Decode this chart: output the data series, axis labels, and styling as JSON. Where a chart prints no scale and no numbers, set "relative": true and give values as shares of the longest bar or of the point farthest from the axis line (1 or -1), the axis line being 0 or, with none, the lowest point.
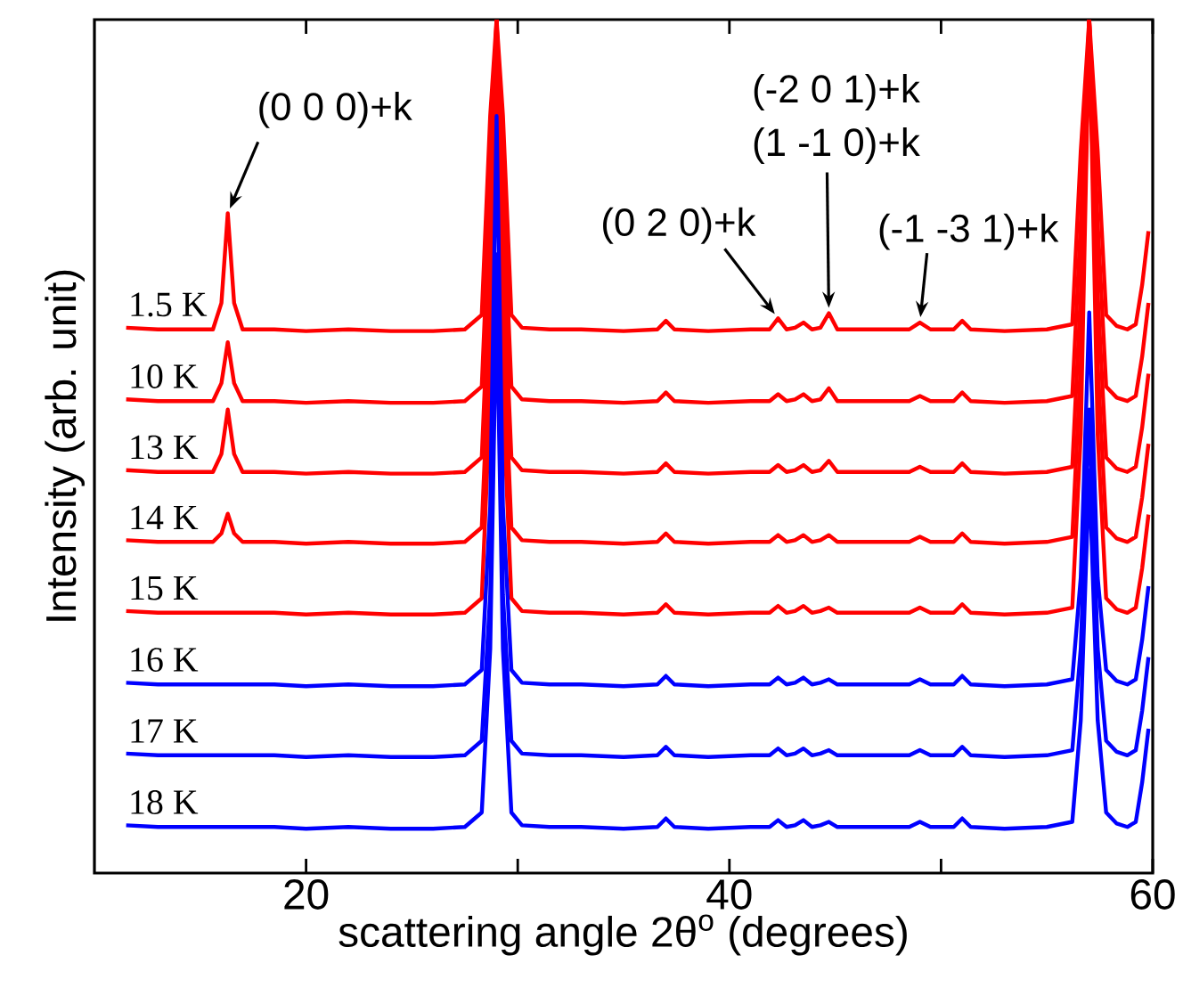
{
  "chart_data": {
    "type": "line",
    "xlabel": "scattering angle 2θ$^{o}$ (degrees)",
    "ylabel": "Intensity (arb. unit)",
    "relative": true,
    "tick_labels": "x",
    "xlim": [
      10,
      60
    ],
    "xticks": [
      20,
      {
        "value": 30,
        "label": null
      },
      40,
      {
        "value": 50,
        "label": null
      },
      60
    ],
    "x": [
      11.5,
      13,
      14.5,
      15.6,
      16.0,
      16.3,
      16.6,
      17.0,
      18.5,
      20,
      22,
      24,
      26,
      27.5,
      28.3,
      28.7,
      29.0,
      29.3,
      29.7,
      30.2,
      31.5,
      33,
      35,
      36.6,
      37.0,
      37.4,
      39,
      41,
      41.9,
      42.3,
      42.7,
      43.1,
      43.5,
      43.9,
      44.3,
      44.7,
      45.1,
      46.5,
      48.5,
      49.0,
      49.5,
      50.6,
      51.0,
      51.4,
      53,
      55,
      56.2,
      56.6,
      57.0,
      57.4,
      57.8,
      58.3,
      58.8,
      59.2,
      59.5,
      59.8
    ],
    "series": [
      {
        "name": "1.5 K",
        "color": "#ff0000",
        "values": [
          0.639,
          0.637,
          0.637,
          0.637,
          0.668,
          0.773,
          0.668,
          0.637,
          0.637,
          0.635,
          0.637,
          0.635,
          0.635,
          0.637,
          0.654,
          0.888,
          1,
          0.888,
          0.654,
          0.639,
          0.637,
          0.637,
          0.635,
          0.637,
          0.647,
          0.637,
          0.635,
          0.637,
          0.637,
          0.65,
          0.637,
          0.639,
          0.645,
          0.637,
          0.639,
          0.656,
          0.637,
          0.637,
          0.637,
          0.645,
          0.637,
          0.637,
          0.647,
          0.637,
          0.635,
          0.637,
          0.643,
          0.846,
          1,
          0.846,
          0.654,
          0.641,
          0.637,
          0.643,
          0.689,
          0.752
        ]
      },
      {
        "name": "10 K",
        "color": "#ff0000",
        "values": [
          0.555,
          0.553,
          0.553,
          0.553,
          0.574,
          0.622,
          0.574,
          0.553,
          0.553,
          0.551,
          0.553,
          0.551,
          0.551,
          0.553,
          0.57,
          0.804,
          1,
          0.804,
          0.57,
          0.555,
          0.553,
          0.553,
          0.551,
          0.553,
          0.563,
          0.553,
          0.551,
          0.553,
          0.553,
          0.561,
          0.553,
          0.555,
          0.561,
          0.553,
          0.555,
          0.568,
          0.553,
          0.553,
          0.553,
          0.559,
          0.553,
          0.553,
          0.563,
          0.553,
          0.551,
          0.553,
          0.559,
          0.762,
          1,
          0.762,
          0.57,
          0.557,
          0.553,
          0.559,
          0.605,
          0.668
        ]
      },
      {
        "name": "13 K",
        "color": "#ff0000",
        "values": [
          0.472,
          0.47,
          0.47,
          0.47,
          0.491,
          0.543,
          0.491,
          0.47,
          0.47,
          0.468,
          0.47,
          0.468,
          0.468,
          0.47,
          0.487,
          0.721,
          1,
          0.721,
          0.487,
          0.472,
          0.47,
          0.47,
          0.468,
          0.47,
          0.48,
          0.47,
          0.468,
          0.47,
          0.47,
          0.478,
          0.47,
          0.472,
          0.478,
          0.47,
          0.472,
          0.483,
          0.47,
          0.47,
          0.47,
          0.476,
          0.47,
          0.47,
          0.48,
          0.47,
          0.468,
          0.47,
          0.476,
          0.679,
          1,
          0.679,
          0.487,
          0.474,
          0.47,
          0.476,
          0.522,
          0.585
        ]
      },
      {
        "name": "14 K",
        "color": "#ff0000",
        "values": [
          0.39,
          0.388,
          0.388,
          0.388,
          0.398,
          0.421,
          0.398,
          0.388,
          0.388,
          0.386,
          0.388,
          0.386,
          0.386,
          0.388,
          0.405,
          0.639,
          1,
          0.639,
          0.405,
          0.39,
          0.388,
          0.388,
          0.386,
          0.388,
          0.398,
          0.388,
          0.386,
          0.388,
          0.388,
          0.396,
          0.388,
          0.39,
          0.396,
          0.388,
          0.39,
          0.396,
          0.388,
          0.388,
          0.388,
          0.394,
          0.388,
          0.388,
          0.398,
          0.388,
          0.386,
          0.388,
          0.394,
          0.597,
          1,
          0.597,
          0.405,
          0.392,
          0.388,
          0.394,
          0.44,
          0.503
        ]
      },
      {
        "name": "15 K",
        "color": "#ff0000",
        "values": [
          0.307,
          0.305,
          0.305,
          0.305,
          0.305,
          0.305,
          0.305,
          0.305,
          0.305,
          0.303,
          0.305,
          0.303,
          0.303,
          0.305,
          0.322,
          0.556,
          1,
          0.556,
          0.322,
          0.307,
          0.305,
          0.305,
          0.303,
          0.305,
          0.315,
          0.305,
          0.303,
          0.305,
          0.305,
          0.313,
          0.305,
          0.307,
          0.313,
          0.305,
          0.307,
          0.311,
          0.305,
          0.305,
          0.305,
          0.311,
          0.305,
          0.305,
          0.315,
          0.305,
          0.303,
          0.305,
          0.311,
          0.514,
          1,
          0.514,
          0.322,
          0.309,
          0.305,
          0.311,
          0.357,
          0.42
        ]
      },
      {
        "name": "16 K",
        "color": "#0000ff",
        "values": [
          0.223,
          0.221,
          0.221,
          0.221,
          0.221,
          0.221,
          0.221,
          0.221,
          0.221,
          0.219,
          0.221,
          0.219,
          0.219,
          0.221,
          0.238,
          0.43,
          0.887,
          0.43,
          0.238,
          0.223,
          0.221,
          0.221,
          0.219,
          0.221,
          0.231,
          0.221,
          0.219,
          0.221,
          0.221,
          0.229,
          0.221,
          0.223,
          0.229,
          0.221,
          0.223,
          0.227,
          0.221,
          0.221,
          0.221,
          0.227,
          0.221,
          0.221,
          0.231,
          0.221,
          0.219,
          0.221,
          0.227,
          0.346,
          0.657,
          0.346,
          0.238,
          0.225,
          0.221,
          0.227,
          0.273,
          0.336
        ]
      },
      {
        "name": "17 K",
        "color": "#0000ff",
        "values": [
          0.14,
          0.138,
          0.138,
          0.138,
          0.138,
          0.138,
          0.138,
          0.138,
          0.138,
          0.136,
          0.138,
          0.136,
          0.136,
          0.138,
          0.155,
          0.326,
          0.725,
          0.326,
          0.155,
          0.14,
          0.138,
          0.138,
          0.136,
          0.138,
          0.148,
          0.138,
          0.136,
          0.138,
          0.138,
          0.146,
          0.138,
          0.14,
          0.146,
          0.138,
          0.14,
          0.144,
          0.138,
          0.138,
          0.138,
          0.144,
          0.138,
          0.138,
          0.148,
          0.138,
          0.136,
          0.138,
          0.144,
          0.263,
          0.543,
          0.263,
          0.155,
          0.142,
          0.138,
          0.144,
          0.19,
          0.253
        ]
      },
      {
        "name": "18 K",
        "color": "#0000ff",
        "values": [
          0.056,
          0.054,
          0.054,
          0.054,
          0.054,
          0.054,
          0.054,
          0.054,
          0.054,
          0.052,
          0.054,
          0.052,
          0.052,
          0.054,
          0.071,
          0.263,
          0.68,
          0.263,
          0.071,
          0.056,
          0.054,
          0.054,
          0.052,
          0.054,
          0.064,
          0.054,
          0.052,
          0.054,
          0.054,
          0.062,
          0.054,
          0.056,
          0.062,
          0.054,
          0.056,
          0.06,
          0.054,
          0.054,
          0.054,
          0.06,
          0.054,
          0.054,
          0.064,
          0.054,
          0.052,
          0.054,
          0.06,
          0.179,
          0.472,
          0.179,
          0.071,
          0.058,
          0.054,
          0.06,
          0.106,
          0.169
        ]
      }
    ],
    "annotations": [
      {
        "text": "(0 0 0)+k",
        "x": 16.3,
        "y": 0.773
      },
      {
        "text": "(0 2 0)+k",
        "x": 42.3,
        "y": 0.65
      },
      "(-2 0 1)+k",
      {
        "text": "(1 -1 0)+k",
        "x": 44.7,
        "y": 0.656
      },
      {
        "text": "(-1 -3 1)+k",
        "x": 49.0,
        "y": 0.645
      }
    ]
  }
}
